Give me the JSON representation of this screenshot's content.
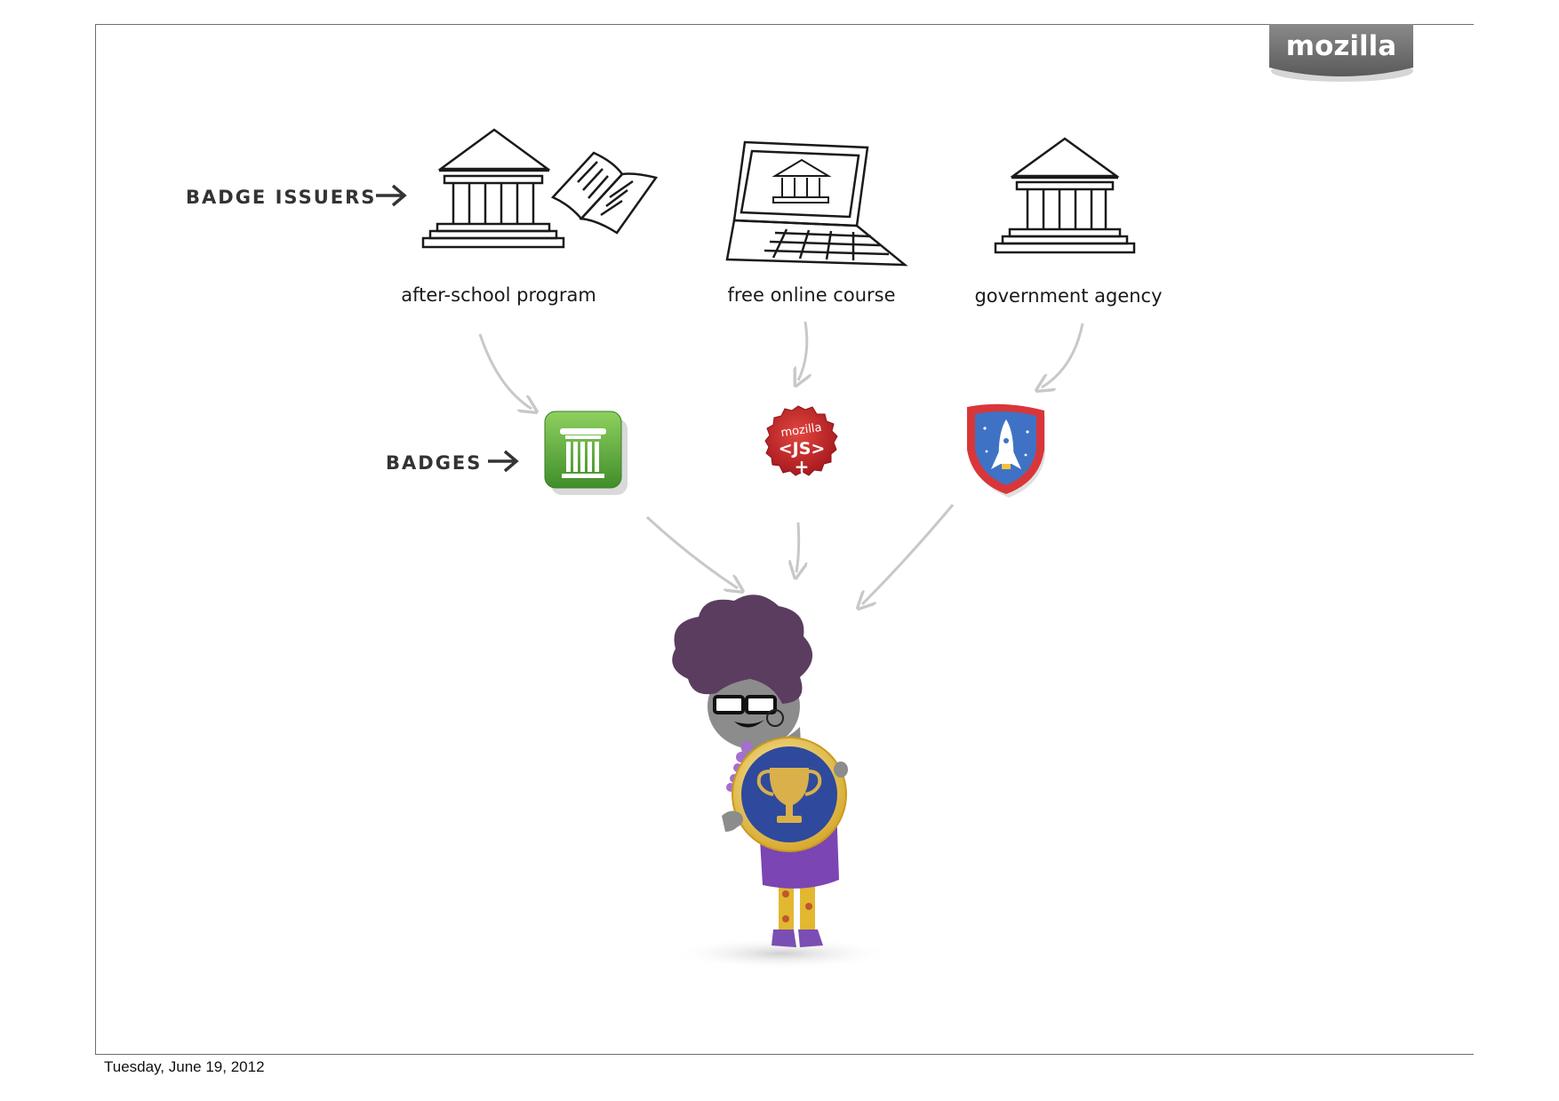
{
  "logo": {
    "text": "mozilla"
  },
  "rows": {
    "issuers_label": "BADGE ISSUERS",
    "badges_label": "BADGES"
  },
  "issuers": [
    {
      "label": "after-school program"
    },
    {
      "label": "free online course"
    },
    {
      "label": "government agency"
    }
  ],
  "badges": [
    {
      "name": "column-badge",
      "color": "#5aa83c"
    },
    {
      "name": "mozilla-js-badge",
      "line1": "mozilla",
      "line2": "<JS>",
      "line3": "+",
      "color": "#c8262a"
    },
    {
      "name": "rocket-badge",
      "color": "#3f72c4"
    }
  ],
  "earner": {
    "trophy_color": "#2f4a9c"
  },
  "footer": {
    "date": "Tuesday, June 19, 2012"
  }
}
